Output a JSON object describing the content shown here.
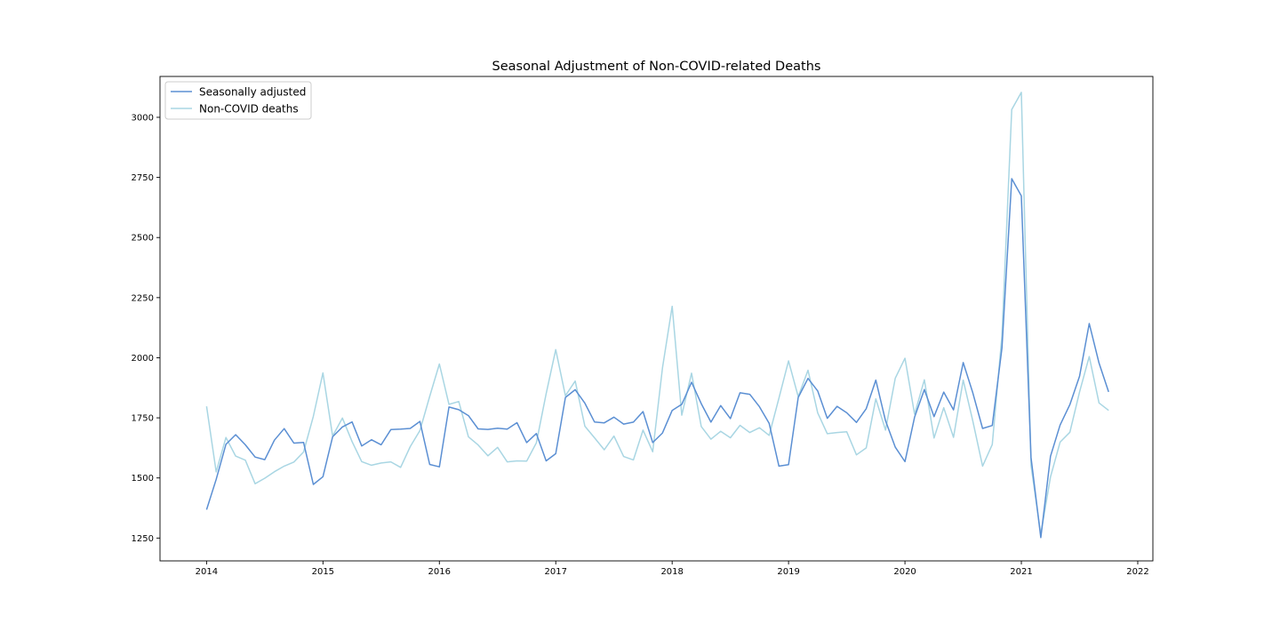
{
  "chart_data": {
    "type": "line",
    "title": "Seasonal Adjustment of Non-COVID-related Deaths",
    "xlabel": "",
    "ylabel": "",
    "x_axis": {
      "type": "time",
      "range": [
        2013.6,
        2022.13
      ],
      "ticks": [
        2014,
        2015,
        2016,
        2017,
        2018,
        2019,
        2020,
        2021,
        2022
      ],
      "tick_labels": [
        "2014",
        "2015",
        "2016",
        "2017",
        "2018",
        "2019",
        "2020",
        "2021",
        "2022"
      ]
    },
    "y_axis": {
      "range": [
        1155,
        3170
      ],
      "ticks": [
        1250,
        1500,
        1750,
        2000,
        2250,
        2500,
        2750,
        3000
      ],
      "tick_labels": [
        "1250",
        "1500",
        "1750",
        "2000",
        "2250",
        "2500",
        "2750",
        "3000"
      ]
    },
    "grid": false,
    "legend": {
      "position": "top-left"
    },
    "x": [
      2014.0,
      2014.083,
      2014.167,
      2014.25,
      2014.333,
      2014.417,
      2014.5,
      2014.583,
      2014.667,
      2014.75,
      2014.833,
      2014.917,
      2015.0,
      2015.083,
      2015.167,
      2015.25,
      2015.333,
      2015.417,
      2015.5,
      2015.583,
      2015.667,
      2015.75,
      2015.833,
      2015.917,
      2016.0,
      2016.083,
      2016.167,
      2016.25,
      2016.333,
      2016.417,
      2016.5,
      2016.583,
      2016.667,
      2016.75,
      2016.833,
      2016.917,
      2017.0,
      2017.083,
      2017.167,
      2017.25,
      2017.333,
      2017.417,
      2017.5,
      2017.583,
      2017.667,
      2017.75,
      2017.833,
      2017.917,
      2018.0,
      2018.083,
      2018.167,
      2018.25,
      2018.333,
      2018.417,
      2018.5,
      2018.583,
      2018.667,
      2018.75,
      2018.833,
      2018.917,
      2019.0,
      2019.083,
      2019.167,
      2019.25,
      2019.333,
      2019.417,
      2019.5,
      2019.583,
      2019.667,
      2019.75,
      2019.833,
      2019.917,
      2020.0,
      2020.083,
      2020.167,
      2020.25,
      2020.333,
      2020.417,
      2020.5,
      2020.583,
      2020.667,
      2020.75,
      2020.833,
      2020.917,
      2021.0,
      2021.083,
      2021.167,
      2021.25,
      2021.333,
      2021.417,
      2021.5,
      2021.583,
      2021.667,
      2021.75
    ],
    "series": [
      {
        "name": "Seasonally adjusted",
        "color": "#5b8fd3",
        "values": [
          1368,
          1494,
          1640,
          1680,
          1638,
          1587,
          1576,
          1657,
          1705,
          1645,
          1648,
          1473,
          1505,
          1671,
          1712,
          1733,
          1633,
          1659,
          1638,
          1701,
          1703,
          1706,
          1735,
          1556,
          1546,
          1795,
          1784,
          1759,
          1704,
          1702,
          1707,
          1703,
          1730,
          1647,
          1685,
          1571,
          1601,
          1835,
          1867,
          1811,
          1733,
          1729,
          1753,
          1724,
          1732,
          1776,
          1647,
          1687,
          1781,
          1806,
          1898,
          1809,
          1732,
          1801,
          1747,
          1854,
          1848,
          1796,
          1727,
          1549,
          1555,
          1835,
          1914,
          1862,
          1748,
          1798,
          1771,
          1731,
          1788,
          1907,
          1738,
          1628,
          1568,
          1753,
          1868,
          1755,
          1857,
          1783,
          1980,
          1854,
          1706,
          1718,
          2041,
          2745,
          2673,
          1585,
          1252,
          1590,
          1720,
          1805,
          1923,
          2142,
          1978,
          1858
        ]
      },
      {
        "name": "Non-COVID deaths",
        "color": "#a9d6e3",
        "values": [
          1798,
          1525,
          1668,
          1591,
          1574,
          1476,
          1499,
          1526,
          1549,
          1566,
          1608,
          1756,
          1937,
          1674,
          1749,
          1651,
          1568,
          1553,
          1562,
          1567,
          1544,
          1630,
          1697,
          1839,
          1974,
          1806,
          1818,
          1671,
          1637,
          1592,
          1627,
          1567,
          1571,
          1570,
          1646,
          1850,
          2034,
          1842,
          1903,
          1715,
          1667,
          1617,
          1674,
          1589,
          1575,
          1699,
          1609,
          1958,
          2214,
          1761,
          1936,
          1714,
          1661,
          1694,
          1667,
          1719,
          1689,
          1709,
          1677,
          1832,
          1987,
          1838,
          1948,
          1771,
          1684,
          1689,
          1692,
          1596,
          1625,
          1829,
          1699,
          1915,
          1998,
          1765,
          1908,
          1666,
          1792,
          1669,
          1907,
          1737,
          1549,
          1639,
          2093,
          3032,
          3104,
          1552,
          1265,
          1504,
          1649,
          1690,
          1858,
          2005,
          1812,
          1781
        ]
      }
    ]
  }
}
